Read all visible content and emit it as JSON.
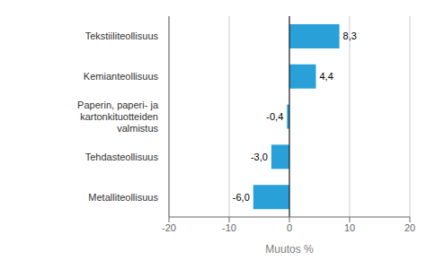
{
  "chart_data": {
    "type": "bar",
    "orientation": "horizontal",
    "categories": [
      "Metalliteollisuus",
      "Tehdasteollisuus",
      "Paperin, paperi- ja kartonkituotteiden valmistus",
      "Kemianteollisuus",
      "Tekstiiliteollisuus"
    ],
    "values": [
      -6.0,
      -3.0,
      -0.4,
      4.4,
      8.3
    ],
    "value_labels": [
      "-6,0",
      "-3,0",
      "-0,4",
      "4,4",
      "8,3"
    ],
    "color": "#29a0d8",
    "xlabel": "Muutos %",
    "xlim": [
      -20,
      20
    ],
    "xticks": [
      -20,
      -10,
      0,
      10,
      20
    ],
    "grid": true
  }
}
